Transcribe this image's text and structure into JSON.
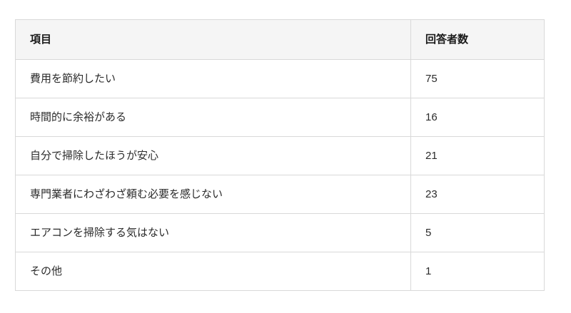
{
  "table": {
    "columns": [
      {
        "label": "項目"
      },
      {
        "label": "回答者数"
      }
    ],
    "rows": [
      {
        "item": "費用を節約したい",
        "count": "75"
      },
      {
        "item": "時間的に余裕がある",
        "count": "16"
      },
      {
        "item": "自分で掃除したほうが安心",
        "count": "21"
      },
      {
        "item": "専門業者にわざわざ頼む必要を感じない",
        "count": "23"
      },
      {
        "item": "エアコンを掃除する気はない",
        "count": "5"
      },
      {
        "item": "その他",
        "count": "1"
      }
    ],
    "colors": {
      "header_bg": "#f5f5f5",
      "border": "#d9d9d9",
      "header_text": "#1a1a1a",
      "body_text": "#2b2b2b",
      "page_bg": "#ffffff"
    }
  },
  "chart_data": {
    "type": "table",
    "title": "",
    "columns": [
      "項目",
      "回答者数"
    ],
    "categories": [
      "費用を節約したい",
      "時間的に余裕がある",
      "自分で掃除したほうが安心",
      "専門業者にわざわざ頼む必要を感じない",
      "エアコンを掃除する気はない",
      "その他"
    ],
    "values": [
      75,
      16,
      21,
      23,
      5,
      1
    ]
  }
}
